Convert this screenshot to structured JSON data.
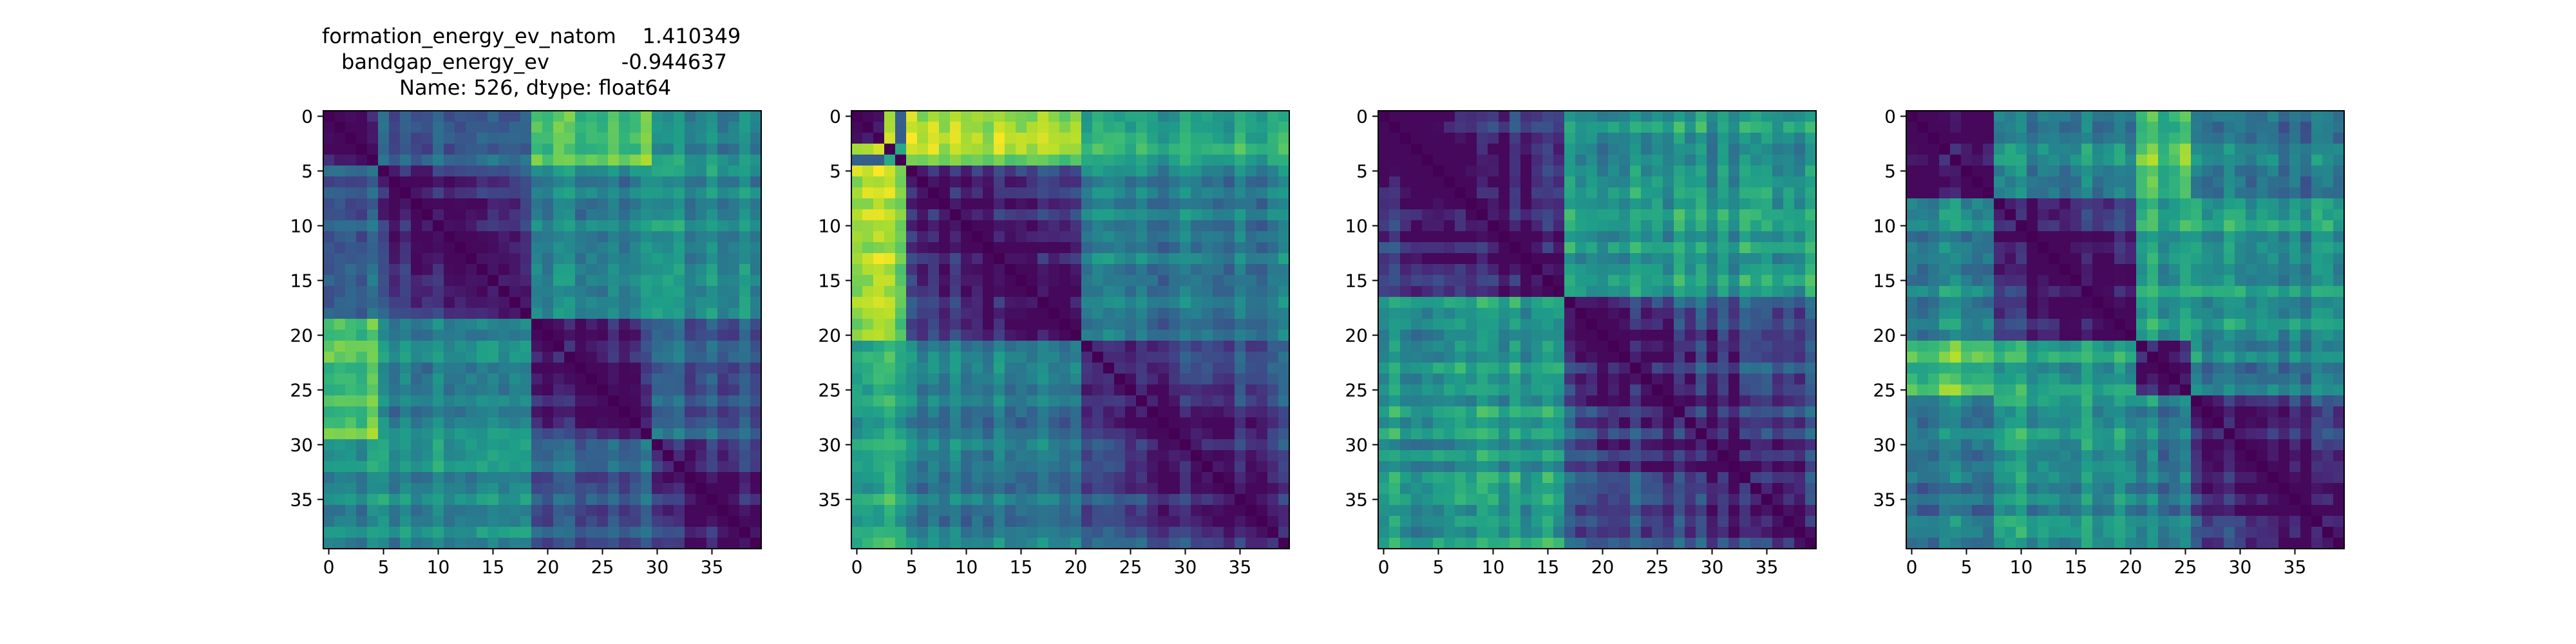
{
  "figure": {
    "title_lines": [
      "formation_energy_ev_natom    1.410349",
      "bandgap_energy_ev           -0.944637",
      "Name: 526, dtype: float64"
    ]
  },
  "chart_data": [
    {
      "type": "heatmap",
      "colormap": "viridis",
      "n": 40,
      "xticks": [
        0,
        5,
        10,
        15,
        20,
        25,
        30,
        35
      ],
      "yticks": [
        0,
        5,
        10,
        15,
        20,
        25,
        30,
        35
      ],
      "groups": [
        0,
        5,
        19,
        30,
        40
      ],
      "groupMean": [
        [
          0.03,
          0.33,
          0.76,
          0.51
        ],
        [
          0.33,
          0.03,
          0.47,
          0.49
        ],
        [
          0.76,
          0.47,
          0.03,
          0.3
        ],
        [
          0.51,
          0.49,
          0.3,
          0.03
        ]
      ],
      "near": 0.2,
      "noise": 0.1,
      "seed": 11
    },
    {
      "type": "heatmap",
      "colormap": "viridis",
      "n": 40,
      "xticks": [
        0,
        5,
        10,
        15,
        20,
        25,
        30,
        35
      ],
      "yticks": [
        0,
        5,
        10,
        15,
        20,
        25,
        30,
        35
      ],
      "groups": [
        0,
        3,
        4,
        5,
        21,
        40
      ],
      "groupMean": [
        [
          0.03,
          0.9,
          0.3,
          0.9,
          0.6
        ],
        [
          0.9,
          0.03,
          0.55,
          0.9,
          0.65
        ],
        [
          0.3,
          0.55,
          0.03,
          0.75,
          0.55
        ],
        [
          0.9,
          0.9,
          0.75,
          0.03,
          0.42
        ],
        [
          0.6,
          0.65,
          0.55,
          0.42,
          0.03
        ]
      ],
      "near": 0.2,
      "noise": 0.1,
      "seed": 23
    },
    {
      "type": "heatmap",
      "colormap": "viridis",
      "n": 40,
      "xticks": [
        0,
        5,
        10,
        15,
        20,
        25,
        30,
        35
      ],
      "yticks": [
        0,
        5,
        10,
        15,
        20,
        25,
        30,
        35
      ],
      "groups": [
        0,
        17,
        40
      ],
      "groupMean": [
        [
          0.03,
          0.55
        ],
        [
          0.55,
          0.03
        ]
      ],
      "near": 0.2,
      "noise": 0.12,
      "seed": 37
    },
    {
      "type": "heatmap",
      "colormap": "viridis",
      "n": 40,
      "xticks": [
        0,
        5,
        10,
        15,
        20,
        25,
        30,
        35
      ],
      "yticks": [
        0,
        5,
        10,
        15,
        20,
        25,
        30,
        35
      ],
      "groups": [
        0,
        8,
        21,
        26,
        40
      ],
      "groupMean": [
        [
          0.03,
          0.5,
          0.75,
          0.45
        ],
        [
          0.5,
          0.03,
          0.6,
          0.55
        ],
        [
          0.75,
          0.6,
          0.03,
          0.45
        ],
        [
          0.45,
          0.55,
          0.45,
          0.03
        ]
      ],
      "near": 0.2,
      "noise": 0.12,
      "seed": 53
    }
  ]
}
